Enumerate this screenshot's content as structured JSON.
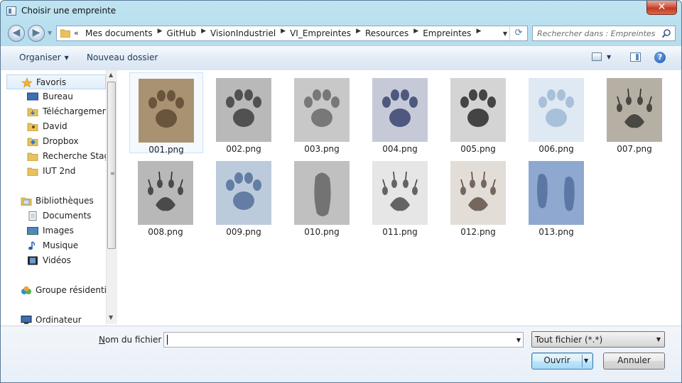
{
  "window": {
    "title": "Choisir une empreinte",
    "close_label": "✕"
  },
  "nav": {
    "crumb_lead": "«",
    "breadcrumbs": [
      "Mes documents",
      "GitHub",
      "VisionIndustriel",
      "VI_Empreintes",
      "Resources",
      "Empreintes"
    ],
    "search_placeholder": "Rechercher dans : Empreintes"
  },
  "toolbar": {
    "organize_label": "Organiser",
    "new_folder_label": "Nouveau dossier",
    "help_label": "?"
  },
  "sidebar": {
    "items": [
      {
        "label": "Favoris",
        "icon": "star-icon",
        "type": "head",
        "selected": true
      },
      {
        "label": "Bureau",
        "icon": "desktop-icon",
        "type": "item"
      },
      {
        "label": "Téléchargements",
        "icon": "downloads-icon",
        "type": "item"
      },
      {
        "label": "David",
        "icon": "user-folder-icon",
        "type": "item"
      },
      {
        "label": "Dropbox",
        "icon": "dropbox-icon",
        "type": "item"
      },
      {
        "label": "Recherche Stage",
        "icon": "folder-icon",
        "type": "item"
      },
      {
        "label": "IUT 2nd",
        "icon": "folder-icon",
        "type": "item"
      },
      {
        "label": "Bibliothèques",
        "icon": "libraries-icon",
        "type": "head"
      },
      {
        "label": "Documents",
        "icon": "documents-icon",
        "type": "item"
      },
      {
        "label": "Images",
        "icon": "pictures-icon",
        "type": "item"
      },
      {
        "label": "Musique",
        "icon": "music-icon",
        "type": "item"
      },
      {
        "label": "Vidéos",
        "icon": "videos-icon",
        "type": "item"
      },
      {
        "label": "Groupe résidentiel",
        "icon": "homegroup-icon",
        "type": "head"
      },
      {
        "label": "Ordinateur",
        "icon": "computer-icon",
        "type": "head"
      }
    ]
  },
  "files": [
    {
      "name": "001.png",
      "bg": "#a89272",
      "fg": "#5e4a33",
      "shape": "paw"
    },
    {
      "name": "002.png",
      "bg": "#b9b9b9",
      "fg": "#3e3e3e",
      "shape": "paw"
    },
    {
      "name": "003.png",
      "bg": "#c8c8c8",
      "fg": "#6a6a6a",
      "shape": "paw"
    },
    {
      "name": "004.png",
      "bg": "#c6cad8",
      "fg": "#3a4470",
      "shape": "paw"
    },
    {
      "name": "005.png",
      "bg": "#d4d4d4",
      "fg": "#2a2a2a",
      "shape": "paw"
    },
    {
      "name": "006.png",
      "bg": "#dfe9f3",
      "fg": "#9fb8d4",
      "shape": "paw"
    },
    {
      "name": "007.png",
      "bg": "#b6b0a4",
      "fg": "#2f2e2a",
      "shape": "claw"
    },
    {
      "name": "008.png",
      "bg": "#b8b8b8",
      "fg": "#2e2e2e",
      "shape": "claw"
    },
    {
      "name": "009.png",
      "bg": "#bccbdc",
      "fg": "#54709a",
      "shape": "paw"
    },
    {
      "name": "010.png",
      "bg": "#c0c0c0",
      "fg": "#5a5a5a",
      "shape": "foot"
    },
    {
      "name": "011.png",
      "bg": "#e6e6e6",
      "fg": "#444444",
      "shape": "claw"
    },
    {
      "name": "012.png",
      "bg": "#e2ddd6",
      "fg": "#5a4a3e",
      "shape": "claw"
    },
    {
      "name": "013.png",
      "bg": "#8fa8cf",
      "fg": "#4f6a98",
      "shape": "double"
    }
  ],
  "footer": {
    "filename_label_first": "N",
    "filename_label_rest": "om du fichier :",
    "filename_value": "",
    "filetype_value": "Tout fichier (*.*)",
    "open_label": "Ouvrir",
    "cancel_label": "Annuler"
  }
}
